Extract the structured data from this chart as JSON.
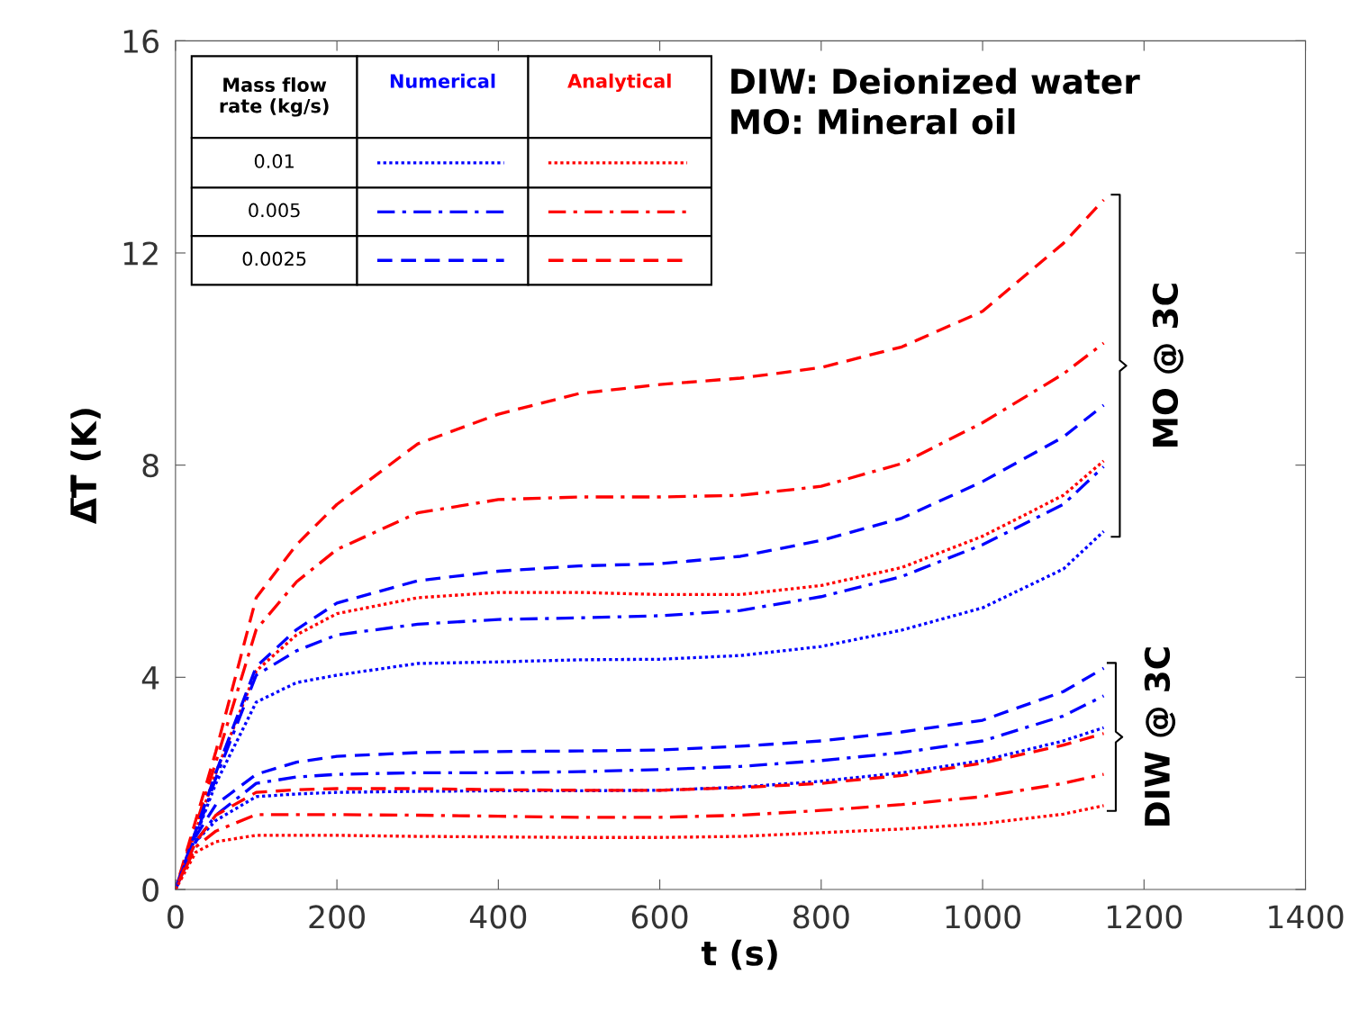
{
  "chart_data": {
    "type": "line",
    "xlabel": "t (s)",
    "ylabel": "Δ̅T̅ (K)",
    "xlim": [
      0,
      1400
    ],
    "xticks": [
      0,
      200,
      400,
      600,
      800,
      1000,
      1200,
      1400
    ],
    "ylim": [
      0,
      16
    ],
    "yticks": [
      0,
      4,
      8,
      12,
      16
    ],
    "grid": false,
    "marker": "none",
    "x": [
      0,
      25,
      50,
      100,
      150,
      200,
      300,
      400,
      500,
      600,
      700,
      800,
      900,
      1000,
      1100,
      1150
    ],
    "series": [
      {
        "color": "#ff0000",
        "line_style": "dashed",
        "values": [
          0,
          1.3,
          2.6,
          5.5,
          6.5,
          7.26,
          8.4,
          8.96,
          9.35,
          9.52,
          9.64,
          9.84,
          10.23,
          10.9,
          12.18,
          13.0
        ]
      },
      {
        "color": "#ff0000",
        "line_style": "dashdot",
        "values": [
          0,
          1.2,
          2.4,
          4.9,
          5.8,
          6.41,
          7.1,
          7.35,
          7.4,
          7.4,
          7.43,
          7.6,
          8.03,
          8.8,
          9.72,
          10.3
        ]
      },
      {
        "color": "#ff0000",
        "line_style": "dotted",
        "values": [
          0,
          1.1,
          2.2,
          4.12,
          4.8,
          5.2,
          5.5,
          5.6,
          5.6,
          5.56,
          5.56,
          5.73,
          6.07,
          6.66,
          7.43,
          8.08
        ]
      },
      {
        "color": "#0000ff",
        "line_style": "dashed",
        "values": [
          0,
          1.1,
          2.2,
          4.2,
          4.9,
          5.4,
          5.82,
          6.0,
          6.1,
          6.14,
          6.28,
          6.58,
          7.0,
          7.69,
          8.53,
          9.13
        ]
      },
      {
        "color": "#0000ff",
        "line_style": "dashdot",
        "values": [
          0,
          1.0,
          2.1,
          4.04,
          4.5,
          4.8,
          5.0,
          5.09,
          5.12,
          5.16,
          5.26,
          5.52,
          5.9,
          6.5,
          7.26,
          7.97
        ]
      },
      {
        "color": "#0000ff",
        "line_style": "dotted",
        "values": [
          0,
          1.0,
          2.0,
          3.53,
          3.9,
          4.04,
          4.26,
          4.29,
          4.33,
          4.34,
          4.41,
          4.58,
          4.89,
          5.31,
          6.04,
          6.75
        ]
      },
      {
        "color": "#0000ff",
        "line_style": "dashed",
        "values": [
          0,
          1.0,
          1.6,
          2.17,
          2.4,
          2.51,
          2.58,
          2.6,
          2.61,
          2.63,
          2.7,
          2.8,
          2.97,
          3.19,
          3.73,
          4.17
        ]
      },
      {
        "color": "#0000ff",
        "line_style": "dashdot",
        "values": [
          0,
          0.9,
          1.4,
          2.0,
          2.12,
          2.17,
          2.2,
          2.2,
          2.22,
          2.26,
          2.32,
          2.43,
          2.58,
          2.8,
          3.27,
          3.65
        ]
      },
      {
        "color": "#0000ff",
        "line_style": "dotted",
        "values": [
          0,
          0.9,
          1.3,
          1.75,
          1.8,
          1.83,
          1.85,
          1.86,
          1.86,
          1.87,
          1.93,
          2.04,
          2.2,
          2.43,
          2.8,
          3.05
        ]
      },
      {
        "color": "#ff0000",
        "line_style": "dashed",
        "values": [
          0,
          0.9,
          1.4,
          1.83,
          1.88,
          1.9,
          1.9,
          1.88,
          1.87,
          1.87,
          1.92,
          2.0,
          2.15,
          2.38,
          2.72,
          2.94
        ]
      },
      {
        "color": "#ff0000",
        "line_style": "dashdot",
        "values": [
          0,
          0.8,
          1.1,
          1.41,
          1.41,
          1.41,
          1.4,
          1.38,
          1.36,
          1.36,
          1.4,
          1.49,
          1.6,
          1.75,
          2.0,
          2.17
        ]
      },
      {
        "color": "#ff0000",
        "line_style": "dotted",
        "values": [
          0,
          0.7,
          0.9,
          1.02,
          1.02,
          1.02,
          1.0,
          0.99,
          0.98,
          0.98,
          1.0,
          1.07,
          1.14,
          1.24,
          1.42,
          1.58
        ]
      }
    ],
    "annotations": [
      "Mass flow\nrate (kg/s)",
      "Numerical",
      "Analytical",
      "0.01",
      "0.005",
      "0.0025",
      "DIW: Deionized water\nMO: Mineral oil",
      "MO @ 3C",
      "DIW @ 3C"
    ]
  }
}
